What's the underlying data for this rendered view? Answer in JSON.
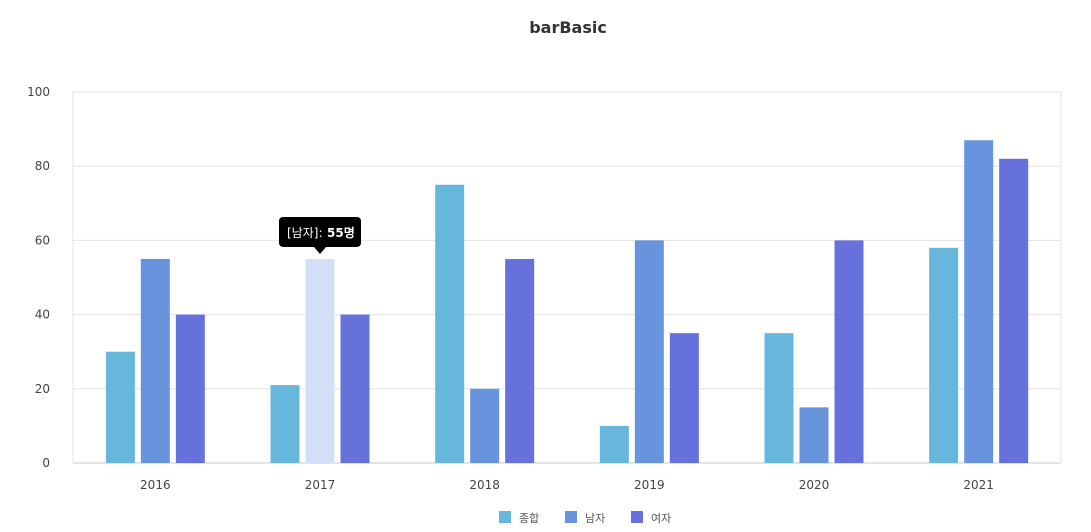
{
  "chart_data": {
    "type": "bar",
    "title": "barBasic",
    "categories": [
      "2016",
      "2017",
      "2018",
      "2019",
      "2020",
      "2021"
    ],
    "series": [
      {
        "name": "종합",
        "values": [
          30,
          21,
          75,
          10,
          35,
          58
        ],
        "color": "#67b7dc"
      },
      {
        "name": "남자",
        "values": [
          55,
          55,
          20,
          60,
          15,
          87
        ],
        "color": "#6794dc"
      },
      {
        "name": "여자",
        "values": [
          40,
          40,
          55,
          35,
          60,
          82
        ],
        "color": "#6771dc"
      }
    ],
    "ylim": [
      0,
      100
    ],
    "yticks": [
      0,
      20,
      40,
      60,
      80,
      100
    ],
    "grid": true,
    "legend_placement": "bottom-center",
    "tooltip": {
      "series_label": "[남자]:",
      "value_text": "55명",
      "category_index": 1,
      "series_index": 1,
      "highlight_color": "#d3e0f5"
    }
  }
}
